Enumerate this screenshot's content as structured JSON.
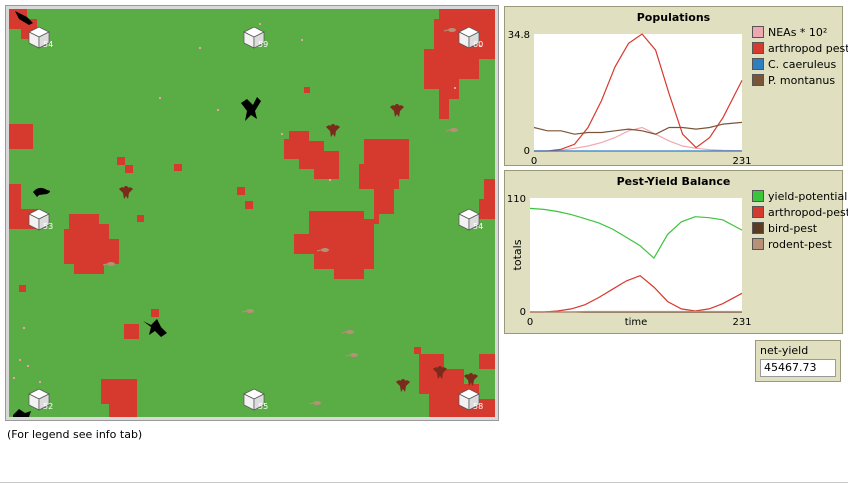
{
  "world": {
    "background_color": "#5aac44",
    "patch_color": "#d63a2e",
    "farm_labels": [
      "54",
      "59",
      "60",
      "53",
      "54",
      "52",
      "55",
      "58"
    ]
  },
  "caption": "(For legend see info tab)",
  "plot_populations": {
    "title": "Populations",
    "chart_data": {
      "type": "line",
      "x": [
        0,
        15,
        30,
        45,
        60,
        75,
        90,
        105,
        120,
        135,
        150,
        165,
        180,
        195,
        210,
        231
      ],
      "xlim": [
        0,
        231
      ],
      "ylim": [
        0,
        34.8
      ],
      "x_ticks": [
        "0",
        "231"
      ],
      "y_ticks": [
        "0",
        "34.8"
      ],
      "series": [
        {
          "name": "NEAs * 10²",
          "color": "#f0a8b0",
          "values": [
            0,
            0,
            0.2,
            0.8,
            1.5,
            2.5,
            4,
            6,
            7,
            5,
            3,
            1.5,
            0.8,
            0.4,
            0.2,
            0.1
          ]
        },
        {
          "name": "arthropod pest",
          "color": "#d63a2e",
          "values": [
            0,
            0,
            0.5,
            2,
            7,
            15,
            25,
            32,
            34.8,
            30,
            17,
            5,
            1,
            4,
            10,
            21
          ]
        },
        {
          "name": "C. caeruleus",
          "color": "#2e7fc0",
          "values": [
            0,
            0,
            0,
            0,
            0,
            0,
            0,
            0,
            0,
            0,
            0,
            0,
            0,
            0,
            0,
            0
          ]
        },
        {
          "name": "P. montanus",
          "color": "#7a5538",
          "values": [
            7,
            6,
            6,
            5,
            5.5,
            5.5,
            6,
            6.5,
            6,
            5,
            7,
            7,
            6.5,
            7,
            8,
            8.5
          ]
        }
      ]
    }
  },
  "plot_balance": {
    "title": "Pest-Yield Balance",
    "chart_data": {
      "type": "line",
      "x": [
        0,
        15,
        30,
        45,
        60,
        75,
        90,
        105,
        120,
        135,
        150,
        165,
        180,
        195,
        210,
        231
      ],
      "xlim": [
        0,
        231
      ],
      "ylim": [
        0,
        110
      ],
      "xlabel": "time",
      "ylabel": "totals",
      "x_ticks": [
        "0",
        "231"
      ],
      "y_ticks": [
        "0",
        "110"
      ],
      "series": [
        {
          "name": "yield-potential",
          "color": "#3cc43c",
          "values": [
            100,
            99,
            97,
            94,
            90,
            86,
            80,
            72,
            64,
            52,
            75,
            87,
            92,
            91,
            89,
            79
          ]
        },
        {
          "name": "arthropod-pest",
          "color": "#d63a2e",
          "values": [
            0,
            0,
            1,
            3,
            7,
            14,
            22,
            30,
            35,
            24,
            10,
            3,
            1,
            3,
            8,
            18
          ]
        },
        {
          "name": "bird-pest",
          "color": "#5a3a22",
          "values": [
            0,
            0,
            0,
            0,
            0,
            0,
            0,
            0,
            0,
            0,
            0,
            0,
            0,
            0,
            0,
            0
          ]
        },
        {
          "name": "rodent-pest",
          "color": "#b89078",
          "values": [
            0,
            0,
            0,
            0,
            0.5,
            0.5,
            0.5,
            0.5,
            0.5,
            0.5,
            0.5,
            0.5,
            0.5,
            0.5,
            0.5,
            0.5
          ]
        }
      ]
    }
  },
  "monitor": {
    "label": "net-yield",
    "value": "45467.73"
  }
}
